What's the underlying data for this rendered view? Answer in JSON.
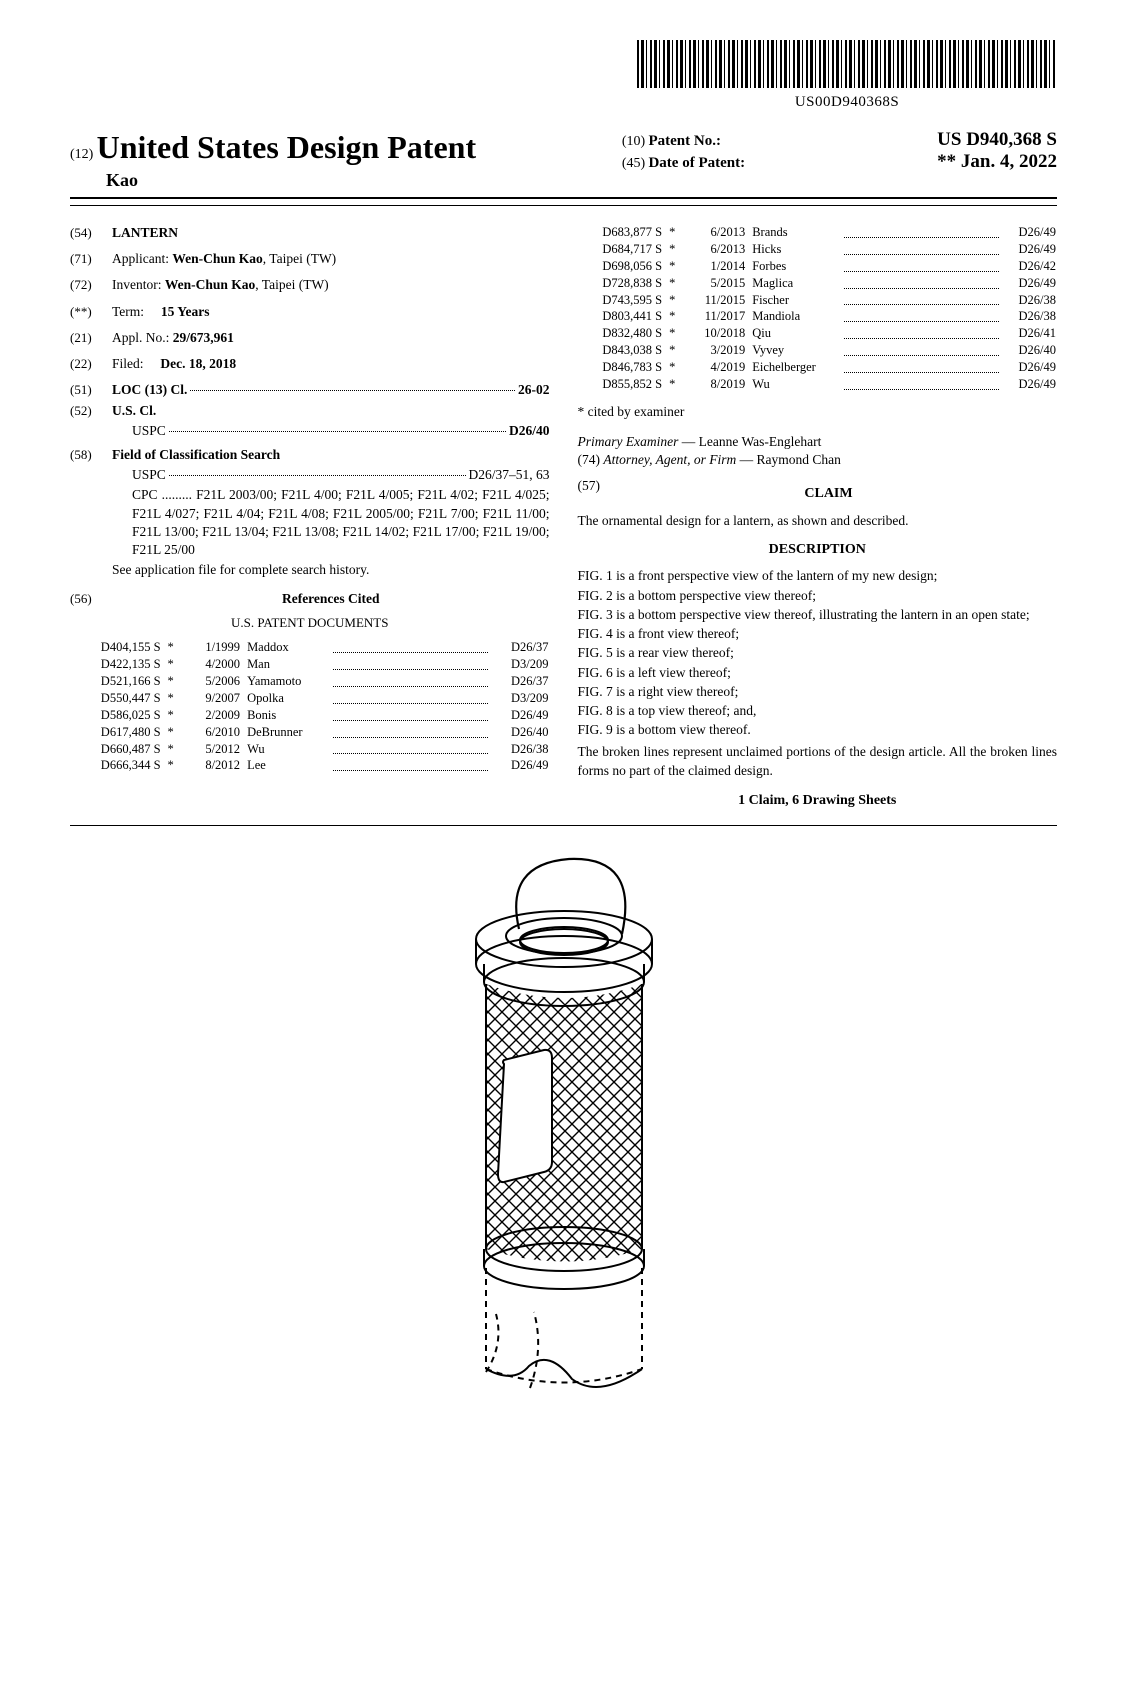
{
  "barcode_text": "US00D940368S",
  "header": {
    "inid_left": "(12)",
    "title": "United States Design Patent",
    "author": "Kao",
    "inid_pn": "(10)",
    "label_pn": "Patent No.:",
    "value_pn": "US D940,368 S",
    "inid_date": "(45)",
    "label_date": "Date of Patent:",
    "value_date": "** Jan. 4, 2022"
  },
  "bib": {
    "title_code": "(54)",
    "title": "LANTERN",
    "applicant_code": "(71)",
    "applicant_label": "Applicant:",
    "applicant": "Wen-Chun Kao",
    "applicant_loc": ", Taipei (TW)",
    "inventor_code": "(72)",
    "inventor_label": "Inventor:",
    "inventor": "Wen-Chun Kao",
    "inventor_loc": ", Taipei (TW)",
    "term_code": "(**)",
    "term_label": "Term:",
    "term": "15 Years",
    "appl_code": "(21)",
    "appl_label": "Appl. No.:",
    "appl": "29/673,961",
    "filed_code": "(22)",
    "filed_label": "Filed:",
    "filed": "Dec. 18, 2018",
    "loc_code": "(51)",
    "loc_label": "LOC (13) Cl.",
    "loc_val": "26-02",
    "uscl_code": "(52)",
    "uscl_label": "U.S. Cl.",
    "uspc_lbl": "USPC",
    "uspc_val": "D26/40",
    "fcs_code": "(58)",
    "fcs_label": "Field of Classification Search",
    "fcs_uspc_lbl": "USPC",
    "fcs_uspc_val": "D26/37–51, 63",
    "fcs_cpc_lbl": "CPC",
    "fcs_cpc": "F21L 2003/00; F21L 4/00; F21L 4/005; F21L 4/02; F21L 4/025; F21L 4/027; F21L 4/04; F21L 4/08; F21L 2005/00; F21L 7/00; F21L 11/00; F21L 13/00; F21L 13/04; F21L 13/08; F21L 14/02; F21L 17/00; F21L 19/00; F21L 25/00",
    "fcs_note": "See application file for complete search history.",
    "ref_code": "(56)",
    "ref_label": "References Cited",
    "ref_sub": "U.S. PATENT DOCUMENTS"
  },
  "refs_left": [
    {
      "n": "D404,155 S",
      "m": "*",
      "d": "1/1999",
      "a": "Maddox",
      "c": "D26/37"
    },
    {
      "n": "D422,135 S",
      "m": "*",
      "d": "4/2000",
      "a": "Man",
      "c": "D3/209"
    },
    {
      "n": "D521,166 S",
      "m": "*",
      "d": "5/2006",
      "a": "Yamamoto",
      "c": "D26/37"
    },
    {
      "n": "D550,447 S",
      "m": "*",
      "d": "9/2007",
      "a": "Opolka",
      "c": "D3/209"
    },
    {
      "n": "D586,025 S",
      "m": "*",
      "d": "2/2009",
      "a": "Bonis",
      "c": "D26/49"
    },
    {
      "n": "D617,480 S",
      "m": "*",
      "d": "6/2010",
      "a": "DeBrunner",
      "c": "D26/40"
    },
    {
      "n": "D660,487 S",
      "m": "*",
      "d": "5/2012",
      "a": "Wu",
      "c": "D26/38"
    },
    {
      "n": "D666,344 S",
      "m": "*",
      "d": "8/2012",
      "a": "Lee",
      "c": "D26/49"
    }
  ],
  "refs_right": [
    {
      "n": "D683,877 S",
      "m": "*",
      "d": "6/2013",
      "a": "Brands",
      "c": "D26/49"
    },
    {
      "n": "D684,717 S",
      "m": "*",
      "d": "6/2013",
      "a": "Hicks",
      "c": "D26/49"
    },
    {
      "n": "D698,056 S",
      "m": "*",
      "d": "1/2014",
      "a": "Forbes",
      "c": "D26/42"
    },
    {
      "n": "D728,838 S",
      "m": "*",
      "d": "5/2015",
      "a": "Maglica",
      "c": "D26/49"
    },
    {
      "n": "D743,595 S",
      "m": "*",
      "d": "11/2015",
      "a": "Fischer",
      "c": "D26/38"
    },
    {
      "n": "D803,441 S",
      "m": "*",
      "d": "11/2017",
      "a": "Mandiola",
      "c": "D26/38"
    },
    {
      "n": "D832,480 S",
      "m": "*",
      "d": "10/2018",
      "a": "Qiu",
      "c": "D26/41"
    },
    {
      "n": "D843,038 S",
      "m": "*",
      "d": "3/2019",
      "a": "Vyvey",
      "c": "D26/40"
    },
    {
      "n": "D846,783 S",
      "m": "*",
      "d": "4/2019",
      "a": "Eichelberger",
      "c": "D26/49"
    },
    {
      "n": "D855,852 S",
      "m": "*",
      "d": "8/2019",
      "a": "Wu",
      "c": "D26/49"
    }
  ],
  "cited_note": "* cited by examiner",
  "examiner_lbl": "Primary Examiner",
  "examiner": " — Leanne Was-Englehart",
  "attorney_code": "(74)",
  "attorney_lbl": "Attorney, Agent, or Firm",
  "attorney": " — Raymond Chan",
  "abstract_code": "(57)",
  "claim_head": "CLAIM",
  "claim_text": "The ornamental design for a lantern, as shown and described.",
  "desc_head": "DESCRIPTION",
  "figs": [
    "FIG. 1 is a front perspective view of the lantern of my new design;",
    "FIG. 2 is a bottom perspective view thereof;",
    "FIG. 3 is a bottom perspective view thereof, illustrating the lantern in an open state;",
    "FIG. 4 is a front view thereof;",
    "FIG. 5 is a rear view thereof;",
    "FIG. 6 is a left view thereof;",
    "FIG. 7 is a right view thereof;",
    "FIG. 8 is a top view thereof; and,",
    "FIG. 9 is a bottom view thereof."
  ],
  "broken_lines": "The broken lines represent unclaimed portions of the design article. All the broken lines forms no part of the claimed design.",
  "footer_claim": "1 Claim, 6 Drawing Sheets"
}
